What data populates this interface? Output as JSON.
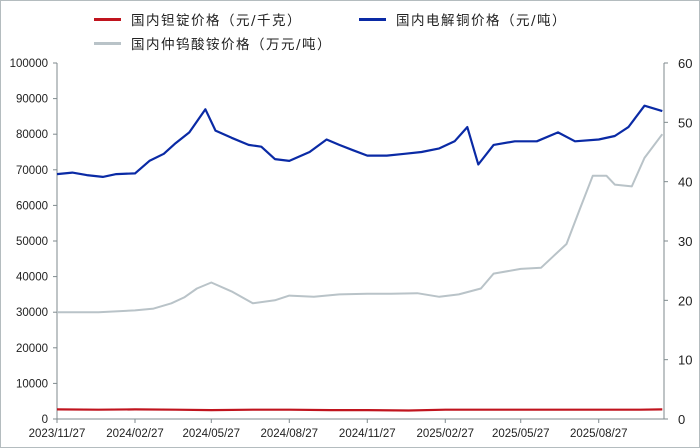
{
  "chart_data": {
    "type": "line",
    "title": "",
    "legend": [
      {
        "name": "国内钽锭价格（元/千克）",
        "color": "#c0141e",
        "axis": "left"
      },
      {
        "name": "国内电解铜价格（元/吨）",
        "color": "#0a2aa5",
        "axis": "left"
      },
      {
        "name": "国内仲钨酸铵价格（万元/吨）",
        "color": "#b9c3c8",
        "axis": "right"
      }
    ],
    "legend_position": "top",
    "x_tick_labels": [
      "2023/11/27",
      "2024/02/27",
      "2024/05/27",
      "2024/08/27",
      "2024/11/27",
      "2025/02/27",
      "2025/05/27",
      "2025/08/27"
    ],
    "left_axis": {
      "ylim": [
        0,
        100000
      ],
      "ticks": [
        0,
        10000,
        20000,
        30000,
        40000,
        50000,
        60000,
        70000,
        80000,
        90000,
        100000
      ]
    },
    "right_axis": {
      "ylim": [
        0,
        60
      ],
      "ticks": [
        0,
        10,
        20,
        30,
        40,
        50,
        60
      ]
    },
    "grid": false,
    "series": [
      {
        "name": "国内钽锭价格（元/千克）",
        "axis": "left",
        "color": "#c0141e",
        "x": [
          "2023/11/27",
          "2024/01/15",
          "2024/02/27",
          "2024/04/15",
          "2024/05/27",
          "2024/07/15",
          "2024/08/27",
          "2024/10/15",
          "2024/11/27",
          "2025/01/15",
          "2025/02/27",
          "2025/04/15",
          "2025/05/27",
          "2025/07/15",
          "2025/08/27",
          "2025/10/15",
          "2025/11/10"
        ],
        "values": [
          2700,
          2600,
          2700,
          2600,
          2500,
          2600,
          2600,
          2500,
          2500,
          2400,
          2600,
          2600,
          2600,
          2600,
          2600,
          2600,
          2700
        ]
      },
      {
        "name": "国内电解铜价格（元/吨）",
        "axis": "left",
        "color": "#0a2aa5",
        "x": [
          "2023/11/27",
          "2023/12/15",
          "2024/01/01",
          "2024/01/20",
          "2024/02/05",
          "2024/02/27",
          "2024/03/15",
          "2024/04/01",
          "2024/04/15",
          "2024/05/01",
          "2024/05/20",
          "2024/06/01",
          "2024/06/20",
          "2024/07/10",
          "2024/07/25",
          "2024/08/10",
          "2024/08/27",
          "2024/09/20",
          "2024/10/10",
          "2024/10/25",
          "2024/11/10",
          "2024/11/27",
          "2024/12/20",
          "2025/01/10",
          "2025/01/30",
          "2025/02/20",
          "2025/03/10",
          "2025/03/25",
          "2025/04/07",
          "2025/04/25",
          "2025/05/20",
          "2025/06/15",
          "2025/07/10",
          "2025/07/30",
          "2025/08/27",
          "2025/09/15",
          "2025/10/01",
          "2025/10/20",
          "2025/11/10"
        ],
        "values": [
          68800,
          69200,
          68500,
          68000,
          68800,
          69000,
          72500,
          74500,
          77500,
          80500,
          87000,
          81000,
          79000,
          77000,
          76500,
          73000,
          72500,
          75000,
          78500,
          77000,
          75500,
          74000,
          74000,
          74500,
          75000,
          76000,
          78000,
          82000,
          71500,
          77000,
          78000,
          78000,
          80500,
          78000,
          78500,
          79500,
          82000,
          88000,
          86500
        ]
      },
      {
        "name": "国内仲钨酸铵价格（万元/吨）",
        "axis": "right",
        "color": "#b9c3c8",
        "x": [
          "2023/11/27",
          "2024/01/15",
          "2024/02/27",
          "2024/03/20",
          "2024/04/10",
          "2024/04/25",
          "2024/05/10",
          "2024/05/27",
          "2024/06/20",
          "2024/07/15",
          "2024/08/10",
          "2024/08/27",
          "2024/09/25",
          "2024/10/25",
          "2024/11/27",
          "2024/12/25",
          "2025/01/25",
          "2025/02/20",
          "2025/03/15",
          "2025/04/10",
          "2025/04/25",
          "2025/05/27",
          "2025/06/20",
          "2025/07/05",
          "2025/07/20",
          "2025/08/05",
          "2025/08/20",
          "2025/09/05",
          "2025/09/15",
          "2025/10/05",
          "2025/10/20",
          "2025/11/10"
        ],
        "values": [
          18.0,
          18.0,
          18.3,
          18.6,
          19.5,
          20.5,
          22.0,
          23.0,
          21.5,
          19.5,
          20.0,
          20.8,
          20.6,
          21.0,
          21.1,
          21.1,
          21.2,
          20.6,
          21.0,
          22.0,
          24.5,
          25.3,
          25.5,
          27.5,
          29.5,
          35.5,
          41.0,
          41.0,
          39.5,
          39.2,
          44.0,
          48.0
        ]
      }
    ]
  }
}
